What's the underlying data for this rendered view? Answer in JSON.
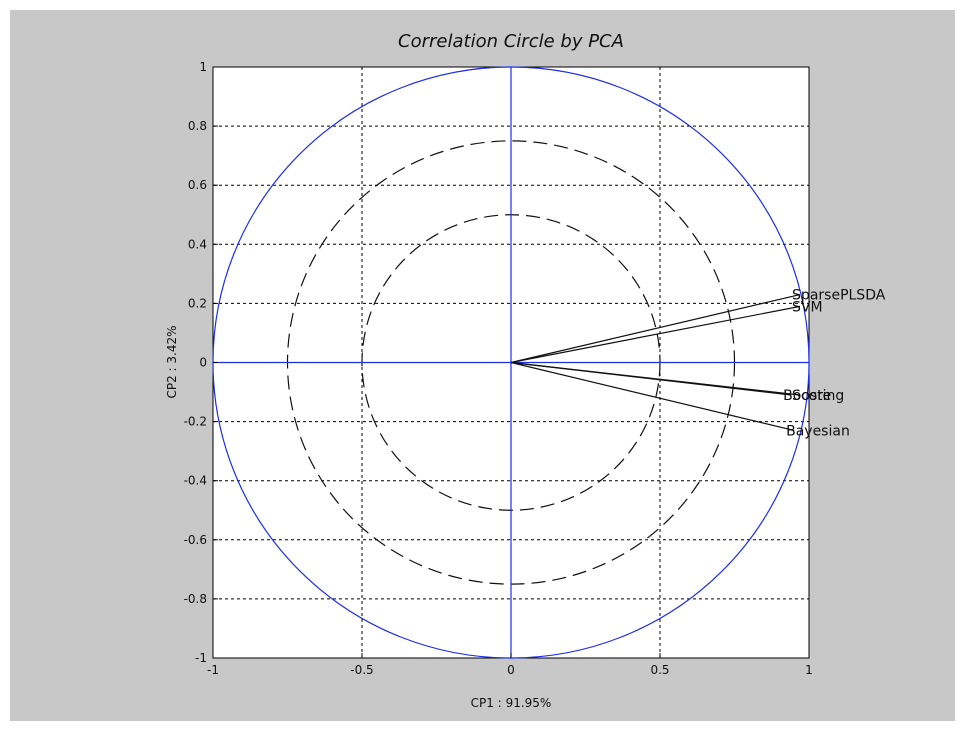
{
  "chart_data": {
    "type": "scatter",
    "title": "Correlation Circle by PCA",
    "xlabel": "CP1 : 91.95%",
    "ylabel": "CP2 :  3.42%",
    "xlim": [
      -1,
      1
    ],
    "ylim": [
      -1,
      1
    ],
    "grid": true,
    "xticks": [
      -1,
      -0.5,
      0,
      0.5,
      1
    ],
    "xtick_labels": [
      "-1",
      "-0.5",
      "0",
      "0.5",
      "1"
    ],
    "yticks": [
      -1,
      -0.8,
      -0.6,
      -0.4,
      -0.2,
      0,
      0.2,
      0.4,
      0.6,
      0.8,
      1
    ],
    "ytick_labels": [
      "-1",
      "-0.8",
      "-0.6",
      "-0.4",
      "-0.2",
      "0",
      "0.2",
      "0.4",
      "0.6",
      "0.8",
      "1"
    ],
    "circles": [
      {
        "radius": 1,
        "style": "solid",
        "color": "#1f2ee8"
      },
      {
        "radius": 0.75,
        "style": "dashed",
        "color": "#111111"
      },
      {
        "radius": 0.5,
        "style": "dashed",
        "color": "#111111"
      }
    ],
    "variables": [
      {
        "name": "SparsePLSDA",
        "x": 0.97,
        "y": 0.23
      },
      {
        "name": "SVM",
        "x": 0.97,
        "y": 0.19
      },
      {
        "name": "Boosting",
        "x": 0.94,
        "y": -0.11
      },
      {
        "name": "Score",
        "x": 0.97,
        "y": -0.11
      },
      {
        "name": "Bayesian",
        "x": 0.95,
        "y": -0.23
      }
    ],
    "colors": {
      "circle": "#1f2ee8",
      "axis_cross": "#1f2ee8",
      "vector": "#111111",
      "background": "#c8c8c8",
      "plot_background": "#ffffff"
    }
  }
}
